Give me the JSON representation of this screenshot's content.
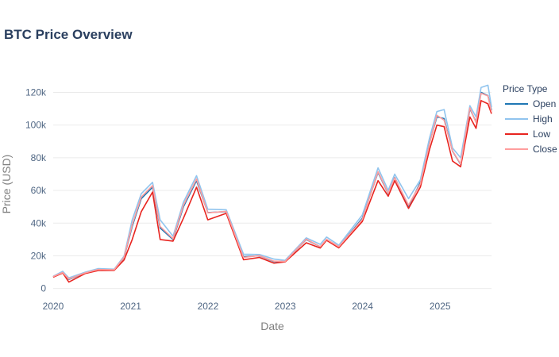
{
  "chart_data": {
    "type": "line",
    "title": "BTC Price Overview",
    "xlabel": "Date",
    "ylabel": "Price (USD)",
    "x_ticks": [
      "2020",
      "2021",
      "2022",
      "2023",
      "2024",
      "2025"
    ],
    "y_ticks": [
      "0",
      "20k",
      "40k",
      "60k",
      "80k",
      "100k",
      "120k"
    ],
    "y_tick_values": [
      0,
      20000,
      40000,
      60000,
      80000,
      100000,
      120000
    ],
    "xlim": [
      "2020-01-01",
      "2025-09-01"
    ],
    "ylim": [
      -6000,
      128000
    ],
    "grid": true,
    "legend": {
      "title": "Price Type",
      "position": "right"
    },
    "series": [
      {
        "name": "Open",
        "color": "#1f77b4",
        "points": [
          [
            "2020-01-01",
            7200
          ],
          [
            "2020-02-15",
            10000
          ],
          [
            "2020-03-15",
            5500
          ],
          [
            "2020-06-01",
            9500
          ],
          [
            "2020-08-01",
            11500
          ],
          [
            "2020-10-15",
            11400
          ],
          [
            "2020-12-01",
            19000
          ],
          [
            "2021-01-08",
            38000
          ],
          [
            "2021-02-20",
            55000
          ],
          [
            "2021-04-14",
            62000
          ],
          [
            "2021-05-20",
            37000
          ],
          [
            "2021-07-20",
            30000
          ],
          [
            "2021-09-07",
            50000
          ],
          [
            "2021-11-08",
            66000
          ],
          [
            "2021-12-31",
            46500
          ],
          [
            "2022-03-28",
            47000
          ],
          [
            "2022-06-18",
            19500
          ],
          [
            "2022-09-01",
            20000
          ],
          [
            "2022-11-09",
            16500
          ],
          [
            "2022-12-31",
            16600
          ],
          [
            "2023-04-10",
            30000
          ],
          [
            "2023-06-15",
            25500
          ],
          [
            "2023-07-15",
            30000
          ],
          [
            "2023-09-11",
            25500
          ],
          [
            "2023-12-31",
            43000
          ],
          [
            "2024-03-14",
            71000
          ],
          [
            "2024-05-01",
            58000
          ],
          [
            "2024-06-01",
            68000
          ],
          [
            "2024-08-05",
            50000
          ],
          [
            "2024-09-30",
            65000
          ],
          [
            "2024-11-12",
            89000
          ],
          [
            "2024-12-17",
            105000
          ],
          [
            "2025-01-20",
            104000
          ],
          [
            "2025-03-01",
            84000
          ],
          [
            "2025-04-08",
            76000
          ],
          [
            "2025-05-22",
            110000
          ],
          [
            "2025-06-20",
            102000
          ],
          [
            "2025-07-14",
            120000
          ],
          [
            "2025-08-15",
            118000
          ],
          [
            "2025-09-01",
            109000
          ]
        ]
      },
      {
        "name": "High",
        "color": "#90c4ee",
        "points": [
          [
            "2020-01-01",
            7500
          ],
          [
            "2020-02-15",
            10500
          ],
          [
            "2020-03-15",
            6500
          ],
          [
            "2020-06-01",
            10000
          ],
          [
            "2020-08-01",
            12200
          ],
          [
            "2020-10-15",
            11800
          ],
          [
            "2020-12-01",
            19900
          ],
          [
            "2021-01-08",
            42000
          ],
          [
            "2021-02-20",
            58000
          ],
          [
            "2021-04-14",
            65000
          ],
          [
            "2021-05-20",
            42000
          ],
          [
            "2021-07-20",
            32000
          ],
          [
            "2021-09-07",
            52800
          ],
          [
            "2021-11-08",
            69000
          ],
          [
            "2021-12-31",
            48500
          ],
          [
            "2022-03-28",
            48200
          ],
          [
            "2022-06-18",
            21000
          ],
          [
            "2022-09-01",
            20800
          ],
          [
            "2022-11-09",
            18000
          ],
          [
            "2022-12-31",
            17200
          ],
          [
            "2023-04-10",
            31000
          ],
          [
            "2023-06-15",
            27000
          ],
          [
            "2023-07-15",
            31500
          ],
          [
            "2023-09-11",
            26500
          ],
          [
            "2023-12-31",
            45000
          ],
          [
            "2024-03-14",
            73800
          ],
          [
            "2024-05-01",
            60000
          ],
          [
            "2024-06-01",
            70000
          ],
          [
            "2024-08-05",
            55000
          ],
          [
            "2024-09-30",
            66500
          ],
          [
            "2024-11-12",
            92000
          ],
          [
            "2024-12-17",
            108300
          ],
          [
            "2025-01-20",
            109500
          ],
          [
            "2025-03-01",
            86000
          ],
          [
            "2025-04-08",
            80000
          ],
          [
            "2025-05-22",
            111900
          ],
          [
            "2025-06-20",
            105000
          ],
          [
            "2025-07-14",
            123000
          ],
          [
            "2025-08-15",
            124400
          ],
          [
            "2025-09-01",
            111000
          ]
        ]
      },
      {
        "name": "Low",
        "color": "#e8241f",
        "points": [
          [
            "2020-01-01",
            6900
          ],
          [
            "2020-02-15",
            9500
          ],
          [
            "2020-03-15",
            3900
          ],
          [
            "2020-06-01",
            9200
          ],
          [
            "2020-08-01",
            11000
          ],
          [
            "2020-10-15",
            11100
          ],
          [
            "2020-12-01",
            17500
          ],
          [
            "2021-01-08",
            30000
          ],
          [
            "2021-02-20",
            47000
          ],
          [
            "2021-04-14",
            59000
          ],
          [
            "2021-05-20",
            30000
          ],
          [
            "2021-07-20",
            29000
          ],
          [
            "2021-09-07",
            43000
          ],
          [
            "2021-11-08",
            62000
          ],
          [
            "2021-12-31",
            42000
          ],
          [
            "2022-03-28",
            46000
          ],
          [
            "2022-06-18",
            17600
          ],
          [
            "2022-09-01",
            19000
          ],
          [
            "2022-11-09",
            15500
          ],
          [
            "2022-12-31",
            16300
          ],
          [
            "2023-04-10",
            28000
          ],
          [
            "2023-06-15",
            24800
          ],
          [
            "2023-07-15",
            29500
          ],
          [
            "2023-09-11",
            24900
          ],
          [
            "2023-12-31",
            41000
          ],
          [
            "2024-03-14",
            66000
          ],
          [
            "2024-05-01",
            56500
          ],
          [
            "2024-06-01",
            66000
          ],
          [
            "2024-08-05",
            49000
          ],
          [
            "2024-09-30",
            62000
          ],
          [
            "2024-11-12",
            85000
          ],
          [
            "2024-12-17",
            100000
          ],
          [
            "2025-01-20",
            99000
          ],
          [
            "2025-03-01",
            78000
          ],
          [
            "2025-04-08",
            74500
          ],
          [
            "2025-05-22",
            105000
          ],
          [
            "2025-06-20",
            98000
          ],
          [
            "2025-07-14",
            115000
          ],
          [
            "2025-08-15",
            113000
          ],
          [
            "2025-09-01",
            107000
          ]
        ]
      },
      {
        "name": "Close",
        "color": "#ff9e9e",
        "points": [
          [
            "2020-01-01",
            7300
          ],
          [
            "2020-02-15",
            9800
          ],
          [
            "2020-03-15",
            5800
          ],
          [
            "2020-06-01",
            9600
          ],
          [
            "2020-08-01",
            11600
          ],
          [
            "2020-10-15",
            11500
          ],
          [
            "2020-12-01",
            19200
          ],
          [
            "2021-01-08",
            39000
          ],
          [
            "2021-02-20",
            56000
          ],
          [
            "2021-04-14",
            63000
          ],
          [
            "2021-05-20",
            38000
          ],
          [
            "2021-07-20",
            30500
          ],
          [
            "2021-09-07",
            51000
          ],
          [
            "2021-11-08",
            67000
          ],
          [
            "2021-12-31",
            46300
          ],
          [
            "2022-03-28",
            47200
          ],
          [
            "2022-06-18",
            19000
          ],
          [
            "2022-09-01",
            20100
          ],
          [
            "2022-11-09",
            16700
          ],
          [
            "2022-12-31",
            16550
          ],
          [
            "2023-04-10",
            30200
          ],
          [
            "2023-06-15",
            25600
          ],
          [
            "2023-07-15",
            30100
          ],
          [
            "2023-09-11",
            25600
          ],
          [
            "2023-12-31",
            42300
          ],
          [
            "2024-03-14",
            71500
          ],
          [
            "2024-05-01",
            58300
          ],
          [
            "2024-06-01",
            67800
          ],
          [
            "2024-08-05",
            51000
          ],
          [
            "2024-09-30",
            64000
          ],
          [
            "2024-11-12",
            88500
          ],
          [
            "2024-12-17",
            106000
          ],
          [
            "2025-01-20",
            103000
          ],
          [
            "2025-03-01",
            84200
          ],
          [
            "2025-04-08",
            76300
          ],
          [
            "2025-05-22",
            110500
          ],
          [
            "2025-06-20",
            101500
          ],
          [
            "2025-07-14",
            119500
          ],
          [
            "2025-08-15",
            117800
          ],
          [
            "2025-09-01",
            108000
          ]
        ]
      }
    ]
  }
}
